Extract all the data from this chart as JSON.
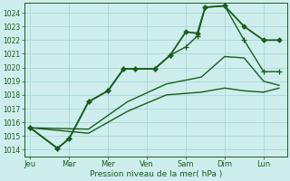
{
  "background_color": "#ceeeed",
  "grid_color": "#a8d8d8",
  "line_color": "#1a5c1a",
  "xlabel": "Pression niveau de la mer( hPa )",
  "ylim": [
    1013.5,
    1024.7
  ],
  "yticks": [
    1014,
    1015,
    1016,
    1017,
    1018,
    1019,
    1020,
    1021,
    1022,
    1023,
    1024
  ],
  "xtick_positions": [
    0,
    1,
    2,
    3,
    4,
    5,
    6
  ],
  "xtick_labels": [
    "Jeu",
    "Mar",
    "Mer",
    "Ven",
    "Sam",
    "Dim",
    "Lun"
  ],
  "xlim": [
    -0.15,
    6.6
  ],
  "series": [
    {
      "x": [
        0,
        0.7,
        1.0,
        1.5,
        2.0,
        2.4,
        2.7,
        3.2,
        3.6,
        4.0,
        4.3,
        4.5,
        5.0,
        5.5,
        6.0,
        6.4
      ],
      "y": [
        1015.6,
        1014.1,
        1014.8,
        1017.5,
        1018.3,
        1019.9,
        1019.9,
        1019.9,
        1020.9,
        1022.6,
        1022.5,
        1024.4,
        1024.5,
        1023.0,
        1022.0,
        1022.0
      ],
      "lw": 1.3,
      "marker": "D",
      "ms": 2.5
    },
    {
      "x": [
        0,
        0.7,
        1.0,
        1.5,
        2.0,
        2.4,
        2.7,
        3.2,
        3.6,
        4.0,
        4.3,
        4.5,
        5.0,
        5.5,
        6.0,
        6.4
      ],
      "y": [
        1015.6,
        1014.1,
        1014.8,
        1017.5,
        1018.3,
        1019.9,
        1019.9,
        1019.9,
        1020.9,
        1021.5,
        1022.3,
        1024.4,
        1024.5,
        1022.0,
        1019.7,
        1019.7
      ],
      "lw": 1.0,
      "marker": "+",
      "ms": 4
    },
    {
      "x": [
        0,
        1.5,
        2.5,
        3.5,
        4.4,
        5.0,
        5.5,
        6.0,
        6.4
      ],
      "y": [
        1015.6,
        1015.5,
        1017.5,
        1018.8,
        1019.3,
        1020.8,
        1020.7,
        1019.0,
        1018.7
      ],
      "lw": 1.0,
      "marker": null,
      "ms": 0
    },
    {
      "x": [
        0,
        1.5,
        2.5,
        3.5,
        4.4,
        5.0,
        5.5,
        6.0,
        6.4
      ],
      "y": [
        1015.6,
        1015.2,
        1016.8,
        1018.0,
        1018.2,
        1018.5,
        1018.3,
        1018.2,
        1018.5
      ],
      "lw": 1.0,
      "marker": null,
      "ms": 0
    }
  ]
}
